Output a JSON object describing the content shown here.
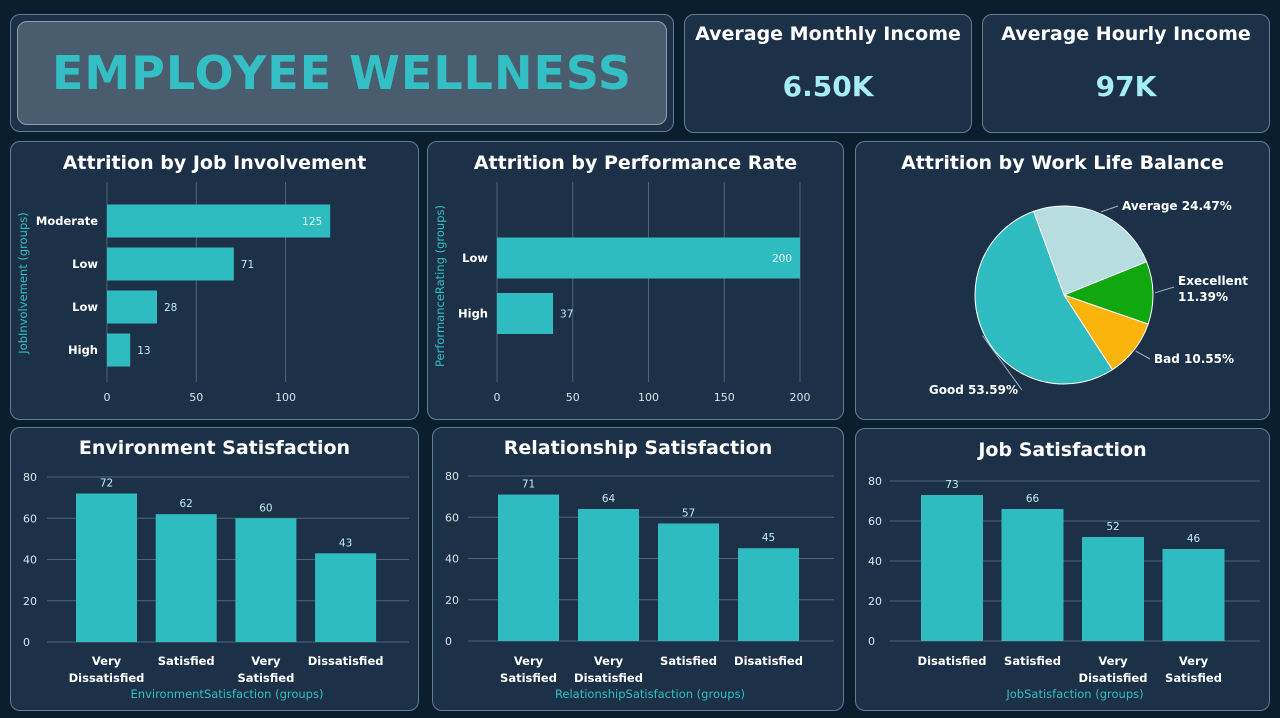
{
  "header": {
    "title": "EMPLOYEE WELLNESS"
  },
  "kpis": [
    {
      "label": "Average Monthly Income",
      "value": "6.50K"
    },
    {
      "label": "Average Hourly Income",
      "value": "97K"
    }
  ],
  "colors": {
    "bar": "#2fbcc0",
    "background": "#0b1e2d",
    "panel": "#1c3147",
    "pie_average": "#b8dde0",
    "pie_excellent": "#10a70f",
    "pie_bad": "#fbb40b",
    "pie_good": "#2fbcc0"
  },
  "chart_data": [
    {
      "id": "job_involvement",
      "type": "bar",
      "orientation": "horizontal",
      "title": "Attrition by Job Involvement",
      "ylabel": "JobInvolvement (groups)",
      "xlabel": "",
      "categories": [
        "Moderate",
        "Low",
        "Low",
        "High"
      ],
      "values": [
        125,
        71,
        28,
        13
      ],
      "xlim": [
        0,
        140
      ],
      "xticks": [
        0,
        50,
        100
      ],
      "grid": true
    },
    {
      "id": "performance_rate",
      "type": "bar",
      "orientation": "horizontal",
      "title": "Attrition by Performance Rate",
      "ylabel": "PerformanceRating (groups)",
      "xlabel": "",
      "categories": [
        "Low",
        "High"
      ],
      "values": [
        200,
        37
      ],
      "xlim": [
        0,
        200
      ],
      "xticks": [
        0,
        50,
        100,
        150,
        200
      ],
      "grid": true
    },
    {
      "id": "work_life_balance",
      "type": "pie",
      "title": "Attrition by Work Life Balance",
      "slices": [
        {
          "label": "Average",
          "value": 24.47,
          "display": "Average 24.47%"
        },
        {
          "label": "Execellent",
          "value": 11.39,
          "display": "Execellent 11.39%"
        },
        {
          "label": "Bad",
          "value": 10.55,
          "display": "Bad 10.55%"
        },
        {
          "label": "Good",
          "value": 53.59,
          "display": "Good 53.59%"
        }
      ]
    },
    {
      "id": "environment_satisfaction",
      "type": "bar",
      "orientation": "vertical",
      "title": "Environment Satisfaction",
      "xlabel": "EnvironmentSatisfaction (groups)",
      "ylabel": "",
      "categories": [
        "Very Dissatisfied",
        "Satisfied",
        "Very Satisfied",
        "Dissatisfied"
      ],
      "values": [
        72,
        62,
        60,
        43
      ],
      "ylim": [
        0,
        80
      ],
      "yticks": [
        0,
        20,
        40,
        60,
        80
      ],
      "grid": true
    },
    {
      "id": "relationship_satisfaction",
      "type": "bar",
      "orientation": "vertical",
      "title": "Relationship Satisfaction",
      "xlabel": "RelationshipSatisfaction (groups)",
      "ylabel": "",
      "categories": [
        "Very Satisfied",
        "Very Disatisfied",
        "Satisfied",
        "Disatisfied"
      ],
      "values": [
        71,
        64,
        57,
        45
      ],
      "ylim": [
        0,
        80
      ],
      "yticks": [
        0,
        20,
        40,
        60,
        80
      ],
      "grid": true
    },
    {
      "id": "job_satisfaction",
      "type": "bar",
      "orientation": "vertical",
      "title": "Job Satisfaction",
      "xlabel": "JobSatisfaction (groups)",
      "ylabel": "",
      "categories": [
        "Disatisfied",
        "Satisfied",
        "Very Disatisfied",
        "Very Satisfied"
      ],
      "values": [
        73,
        66,
        52,
        46
      ],
      "ylim": [
        0,
        80
      ],
      "yticks": [
        0,
        20,
        40,
        60,
        80
      ],
      "grid": true
    }
  ]
}
